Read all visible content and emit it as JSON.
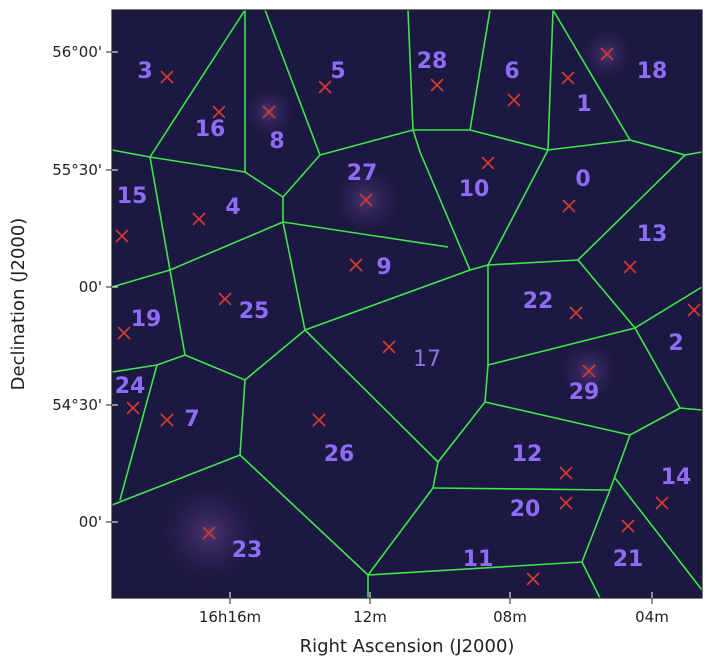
{
  "axes": {
    "xlabel": "Right Ascension (J2000)",
    "ylabel": "Declination (J2000)",
    "xticks": [
      "16h16m",
      "12m",
      "08m",
      "04m"
    ],
    "yticks": [
      "56°00'",
      "55°30'",
      "00'",
      "54°30'",
      "00'"
    ]
  },
  "regions": [
    "3",
    "16",
    "8",
    "5",
    "28",
    "6",
    "1",
    "18",
    "15",
    "4",
    "27",
    "10",
    "0",
    "13",
    "9",
    "22",
    "25",
    "19",
    "17",
    "2",
    "24",
    "7",
    "29",
    "26",
    "12",
    "14",
    "20",
    "23",
    "11",
    "21"
  ]
}
